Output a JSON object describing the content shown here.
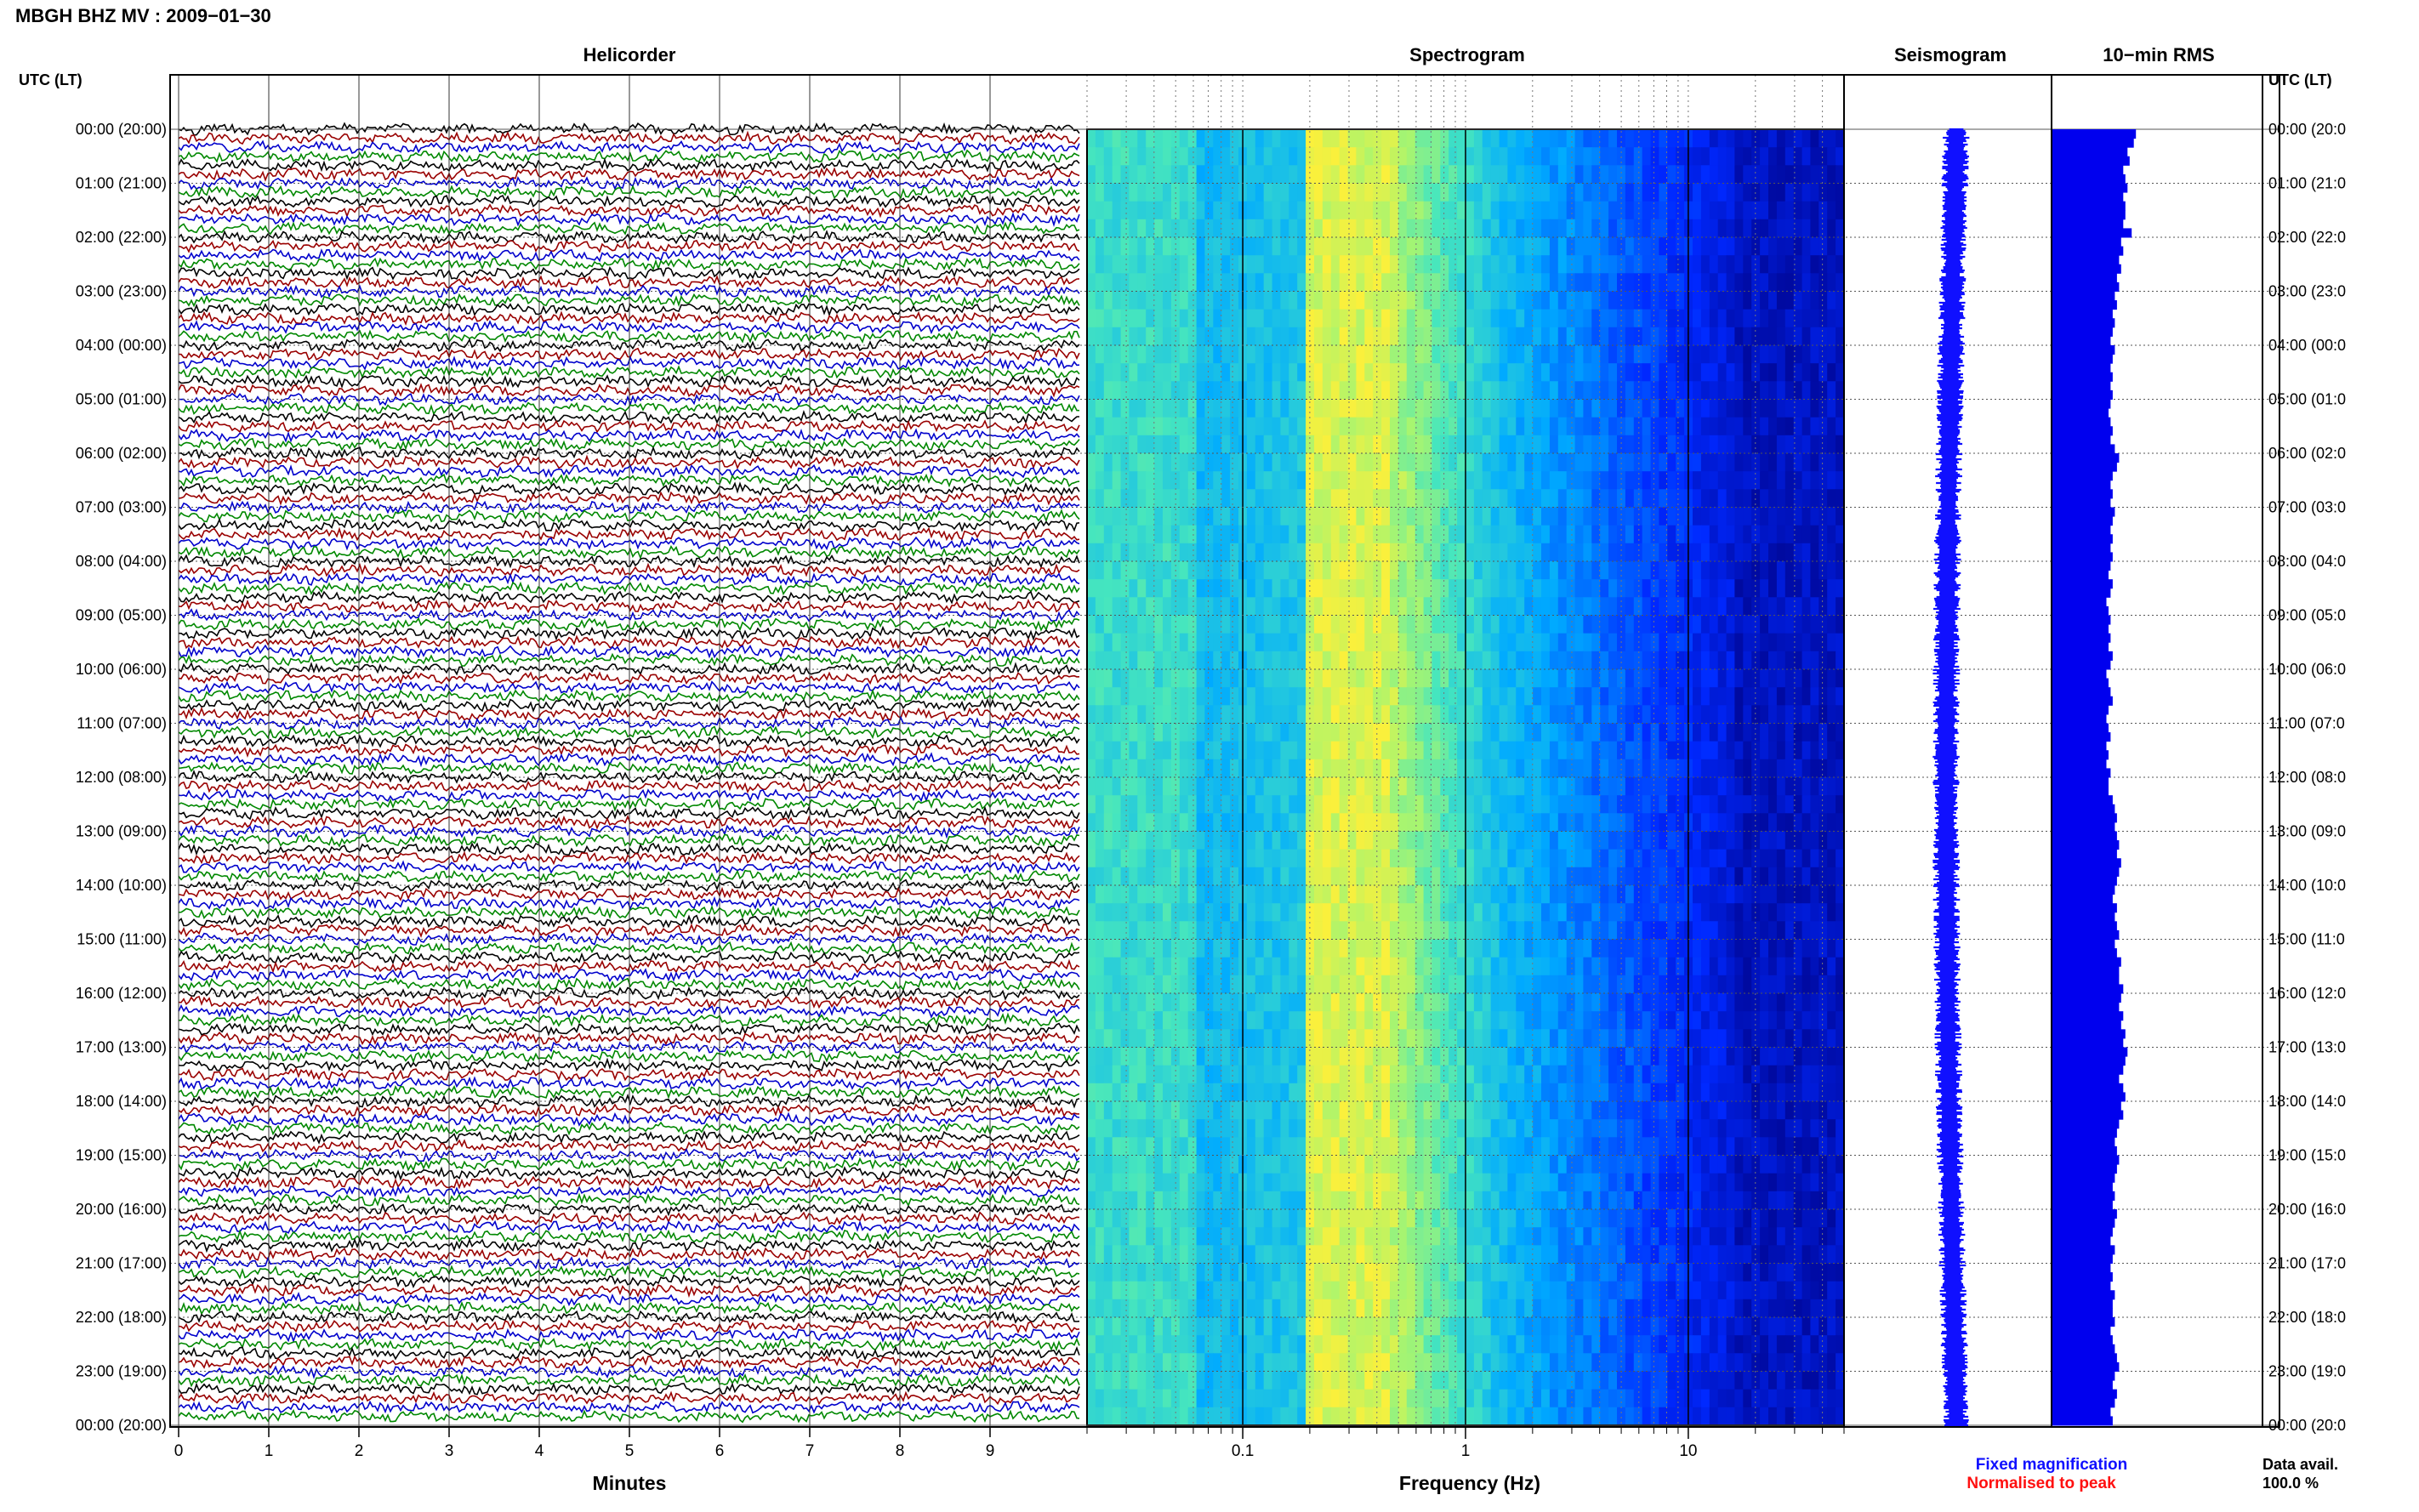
{
  "header": {
    "title": "MBGH BHZ MV : 2009−01−30"
  },
  "panels": {
    "helicorder": "Helicorder",
    "spectrogram": "Spectrogram",
    "seismogram": "Seismogram",
    "rms": "10−min RMS"
  },
  "axes": {
    "left_header": "UTC (LT)",
    "right_header": "UTC (LT)",
    "minutes_label": "Minutes",
    "minutes_ticks": [
      "0",
      "1",
      "2",
      "3",
      "4",
      "5",
      "6",
      "7",
      "8",
      "9"
    ],
    "frequency_label": "Frequency (Hz)",
    "frequency_ticks": [
      "0.1",
      "1",
      "10"
    ],
    "hour_labels_left": [
      "00:00 (20:00)",
      "01:00 (21:00)",
      "02:00 (22:00)",
      "03:00 (23:00)",
      "04:00 (00:00)",
      "05:00 (01:00)",
      "06:00 (02:00)",
      "07:00 (03:00)",
      "08:00 (04:00)",
      "09:00 (05:00)",
      "10:00 (06:00)",
      "11:00 (07:00)",
      "12:00 (08:00)",
      "13:00 (09:00)",
      "14:00 (10:00)",
      "15:00 (11:00)",
      "16:00 (12:00)",
      "17:00 (13:00)",
      "18:00 (14:00)",
      "19:00 (15:00)",
      "20:00 (16:00)",
      "21:00 (17:00)",
      "22:00 (18:00)",
      "23:00 (19:00)",
      "00:00 (20:00)"
    ],
    "hour_labels_right": [
      "00:00 (20:0",
      "01:00 (21:0",
      "02:00 (22:0",
      "03:00 (23:0",
      "04:00 (00:0",
      "05:00 (01:0",
      "06:00 (02:0",
      "07:00 (03:0",
      "08:00 (04:0",
      "09:00 (05:0",
      "10:00 (06:0",
      "11:00 (07:0",
      "12:00 (08:0",
      "13:00 (09:0",
      "14:00 (10:0",
      "15:00 (11:0",
      "16:00 (12:0",
      "17:00 (13:0",
      "18:00 (14:0",
      "19:00 (15:0",
      "20:00 (16:0",
      "21:00 (17:0",
      "22:00 (18:0",
      "23:00 (19:0",
      "00:00 (20:0"
    ]
  },
  "legend": {
    "fixed": "Fixed magnification",
    "normalised": "Normalised to peak",
    "fixed_color": "#1010ff",
    "normalised_color": "#ff1010"
  },
  "availability": {
    "label": "Data avail.",
    "value": "100.0 %"
  },
  "colors": {
    "trace_cycle": [
      "#000000",
      "#990000",
      "#0000cc",
      "#008800"
    ],
    "rms_bar": "#0000ee",
    "seismogram": "#1010ff",
    "spectrogram_scale": [
      "#00007f",
      "#0030ff",
      "#00b0ff",
      "#50e8c0",
      "#f8f040"
    ]
  },
  "chart_data": [
    {
      "type": "line",
      "title": "Helicorder",
      "xlabel": "Minutes",
      "x": [
        0,
        1,
        2,
        3,
        4,
        5,
        6,
        7,
        8,
        9
      ],
      "xlim": [
        0,
        10
      ],
      "traces_per_hour": 6,
      "hours": 24,
      "grid": true
    },
    {
      "type": "heatmap",
      "title": "Spectrogram",
      "xlabel": "Frequency (Hz)",
      "xscale": "log",
      "xlim": [
        0.02,
        50
      ],
      "x_ticks": [
        0.1,
        1,
        10
      ],
      "grid": true
    },
    {
      "type": "line",
      "title": "Seismogram"
    },
    {
      "type": "bar",
      "title": "10−min RMS",
      "orientation": "horizontal",
      "values": [
        2.0,
        1.95,
        1.8,
        1.85,
        1.7,
        1.75,
        1.8,
        1.7,
        1.75,
        1.75,
        1.7,
        1.9,
        1.65,
        1.7,
        1.6,
        1.65,
        1.55,
        1.6,
        1.5,
        1.55,
        1.45,
        1.5,
        1.45,
        1.4,
        1.5,
        1.45,
        1.4,
        1.45,
        1.4,
        1.45,
        1.4,
        1.35,
        1.4,
        1.45,
        1.4,
        1.5,
        1.6,
        1.55,
        1.45,
        1.4,
        1.45,
        1.4,
        1.5,
        1.45,
        1.4,
        1.45,
        1.4,
        1.45,
        1.4,
        1.35,
        1.45,
        1.4,
        1.3,
        1.35,
        1.4,
        1.35,
        1.4,
        1.35,
        1.45,
        1.4,
        1.3,
        1.35,
        1.4,
        1.45,
        1.35,
        1.3,
        1.35,
        1.4,
        1.3,
        1.35,
        1.3,
        1.4,
        1.35,
        1.35,
        1.45,
        1.5,
        1.55,
        1.5,
        1.55,
        1.6,
        1.55,
        1.65,
        1.6,
        1.55,
        1.5,
        1.45,
        1.55,
        1.5,
        1.55,
        1.6,
        1.5,
        1.55,
        1.65,
        1.6,
        1.6,
        1.7,
        1.65,
        1.6,
        1.7,
        1.65,
        1.75,
        1.7,
        1.8,
        1.75,
        1.7,
        1.6,
        1.7,
        1.75,
        1.65,
        1.7,
        1.6,
        1.55,
        1.5,
        1.55,
        1.6,
        1.55,
        1.5,
        1.45,
        1.5,
        1.45,
        1.55,
        1.5,
        1.45,
        1.4,
        1.5,
        1.45,
        1.4,
        1.45,
        1.4,
        1.5,
        1.45,
        1.45,
        1.5,
        1.4,
        1.45,
        1.5,
        1.55,
        1.6,
        1.5,
        1.45,
        1.55,
        1.5,
        1.4,
        1.45
      ]
    }
  ]
}
